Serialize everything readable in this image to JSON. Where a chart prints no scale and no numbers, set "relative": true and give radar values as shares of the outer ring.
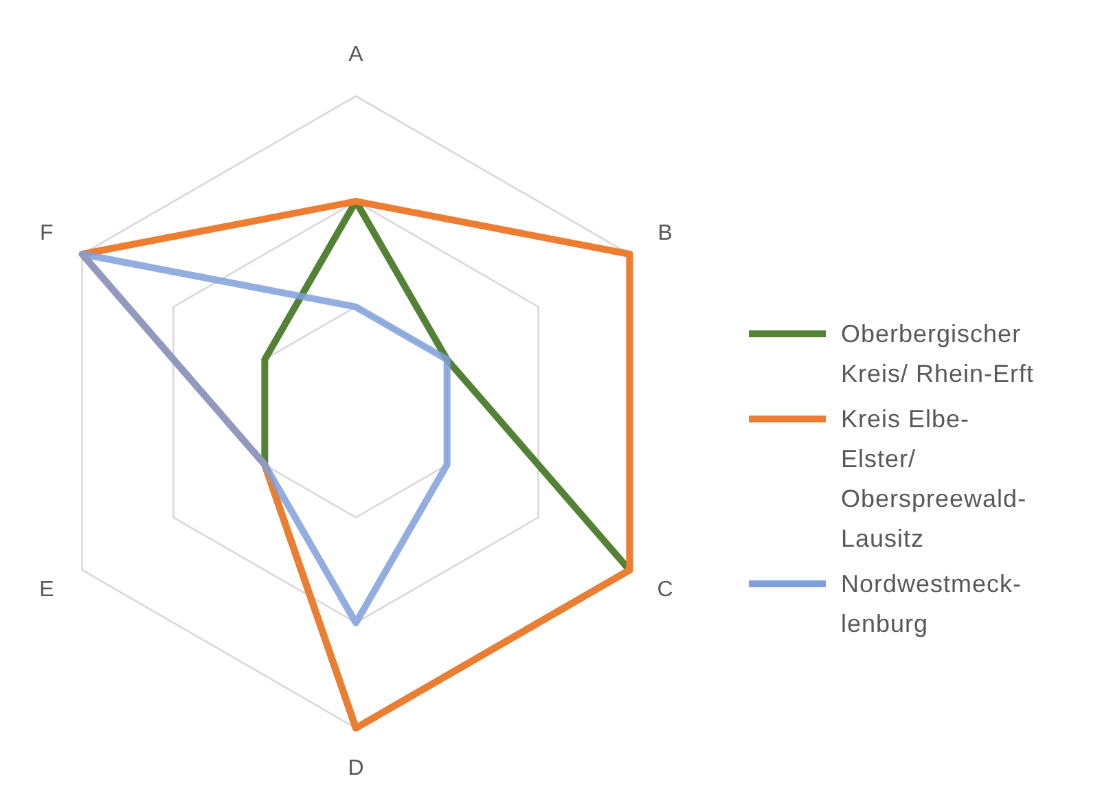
{
  "chart_data": {
    "type": "radar",
    "categories": [
      "A",
      "B",
      "C",
      "D",
      "E",
      "F"
    ],
    "relative": true,
    "grid": true,
    "legend": "right",
    "series": [
      {
        "name": "Oberbergischer Kreis/ Rhein-Erft",
        "color": "#548235",
        "values": [
          0.667,
          0.333,
          1,
          1,
          0.333,
          0.333
        ]
      },
      {
        "name": "Kreis Elbe-Elster/ Oberspreewald-Lausitz",
        "color": "#ed7d31",
        "values": [
          0.667,
          1,
          1,
          1,
          0.333,
          1
        ]
      },
      {
        "name": "Nordwestmeck-lenburg",
        "color": "#7f9fdb",
        "values": [
          0.333,
          0.333,
          0.333,
          0.667,
          0.333,
          1
        ]
      }
    ]
  }
}
